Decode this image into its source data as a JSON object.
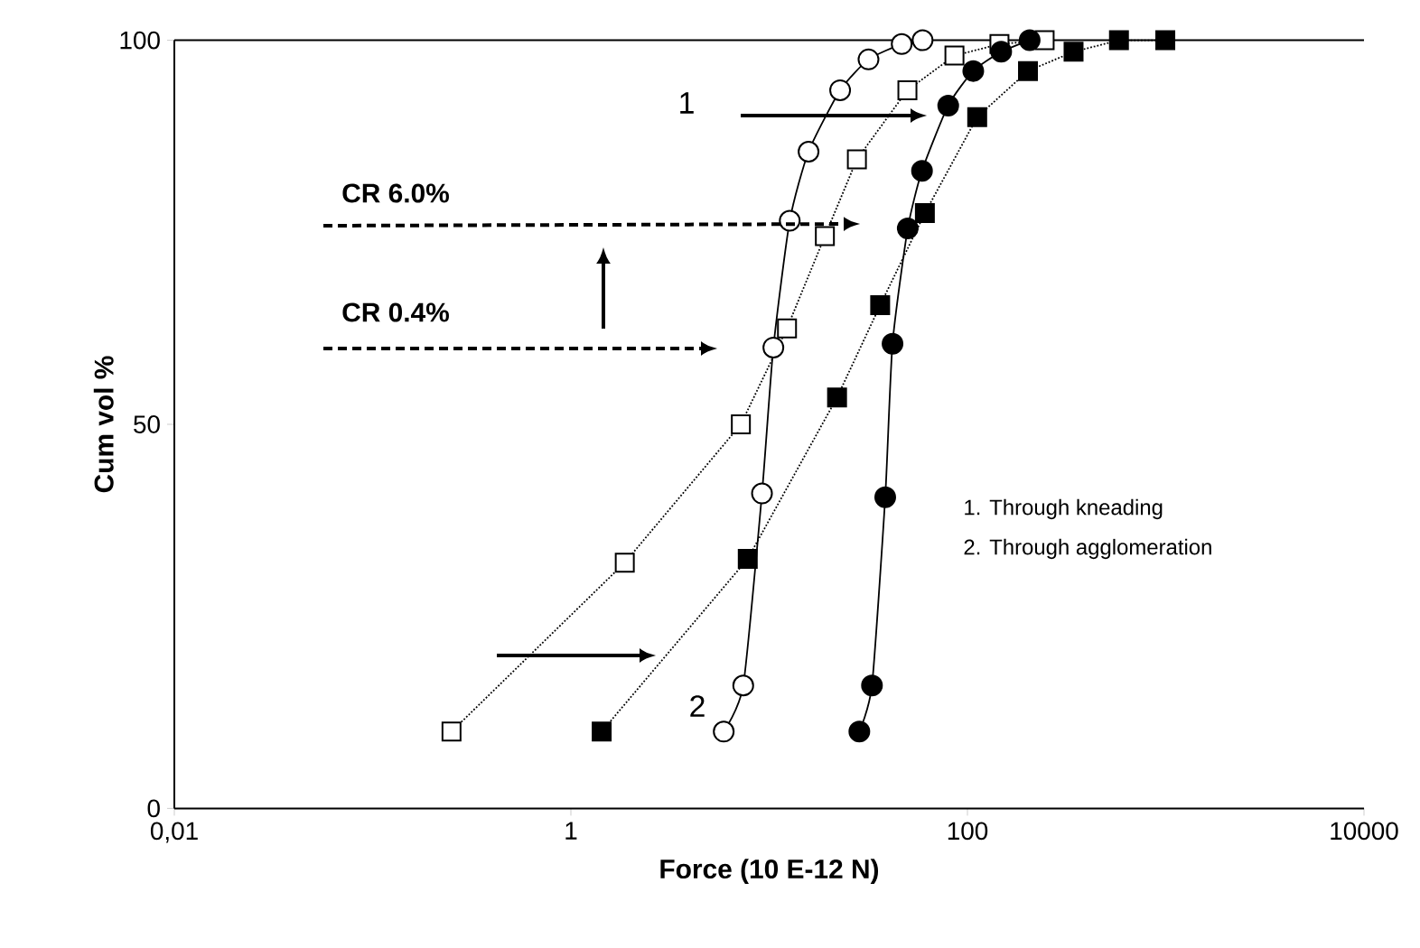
{
  "chart_data": {
    "type": "line",
    "xlabel": "Force (10 E-12 N)",
    "ylabel": "Cum vol %",
    "log": "x",
    "xlim": [
      0.01,
      10000
    ],
    "xticks": [
      {
        "value": 0.01,
        "label": "0,01"
      },
      1,
      100,
      10000
    ],
    "ylim": [
      0,
      100
    ],
    "yticks": [
      0,
      50,
      100
    ],
    "grid": false,
    "series": [
      {
        "color": "#000000",
        "colors": [
          "#ffffff",
          "#ffffff",
          "#ffffff",
          "#ffffff",
          "#ffffff",
          "#ffffff",
          "#ffffff",
          "#ffffff",
          "#ffffff",
          "#ffffff"
        ],
        "marker": "circle",
        "line_style": "solid",
        "x": [
          5.9,
          7.4,
          9.2,
          10.5,
          12.7,
          15.8,
          22.8,
          31.7,
          46.6,
          59.4
        ],
        "values": [
          10,
          16,
          41,
          60,
          76.5,
          85.5,
          93.5,
          97.5,
          99.5,
          100
        ]
      },
      {
        "color": "#000000",
        "colors": [
          "#ffffff",
          "#ffffff",
          "#ffffff",
          "#ffffff",
          "#ffffff",
          "#ffffff",
          "#ffffff",
          "#ffffff",
          "#ffffff",
          "#ffffff"
        ],
        "marker": "square",
        "line_style": "dotted",
        "x": [
          0.25,
          1.87,
          7.2,
          12.3,
          19.1,
          27.7,
          49.8,
          86,
          145,
          245
        ],
        "values": [
          10,
          32,
          50,
          62.5,
          74.5,
          84.5,
          93.5,
          98,
          99.5,
          100
        ]
      },
      {
        "color": "#000000",
        "marker": "circle",
        "line_style": "solid",
        "x": [
          28.5,
          33,
          38.5,
          41.9,
          50,
          59,
          80,
          107,
          148,
          206
        ],
        "values": [
          10,
          16,
          40.5,
          60.5,
          75.5,
          83,
          91.5,
          96,
          98.5,
          100
        ]
      },
      {
        "color": "#000000",
        "marker": "square",
        "line_style": "dotted",
        "x": [
          1.43,
          7.8,
          22,
          36.3,
          61,
          112,
          202,
          343,
          581,
          995
        ],
        "values": [
          10,
          32.5,
          53.5,
          65.5,
          77.5,
          90,
          96,
          98.5,
          100,
          100
        ]
      }
    ],
    "annotations": [
      "1",
      "2",
      "CR 6.0%",
      "CR 0.4%",
      "1. Through kneading",
      "2. Through agglomeration"
    ]
  }
}
